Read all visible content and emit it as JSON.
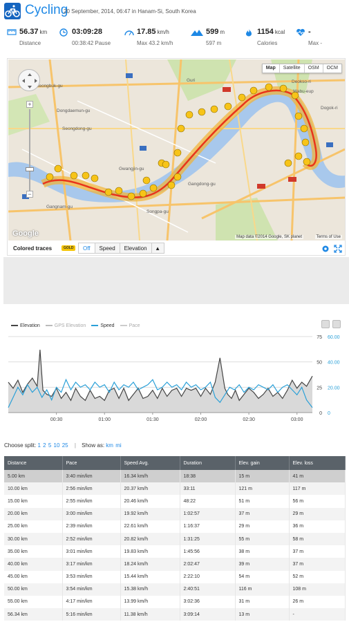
{
  "header": {
    "title": "Cycling",
    "subtitle": "20 September, 2014, 06:47 in Hanam-Si, South Korea",
    "icon": "bicycle-icon",
    "accent": "#1e88e5"
  },
  "stats": [
    {
      "icon": "distance-icon",
      "value": "56.37",
      "unit": "km",
      "sub": "Distance"
    },
    {
      "icon": "clock-icon",
      "value": "03:09:28",
      "unit": "",
      "sub": "00:38:42 Pause"
    },
    {
      "icon": "speedometer-icon",
      "value": "17.85",
      "unit": "km/h",
      "sub": "Max 43.2 km/h"
    },
    {
      "icon": "mountain-icon",
      "value": "599",
      "unit": "m",
      "sub": "597 m"
    },
    {
      "icon": "flame-icon",
      "value": "1154",
      "unit": "kcal",
      "sub": "Calories"
    },
    {
      "icon": "heart-rate-icon",
      "value": "-",
      "unit": "",
      "sub": "Max -"
    }
  ],
  "map": {
    "types": [
      "Map",
      "Satellite",
      "OSM",
      "OCM"
    ],
    "google": "Google",
    "attribution": "Map data ©2014 Google, SK planet",
    "terms": "Terms of Use",
    "labels": [
      "Seongbuk-gu",
      "Dongdaemun-gu",
      "Seongdong-gu",
      "Gwangjin-gu",
      "Gangdong-gu",
      "Songpa-gu",
      "Gangnam-gu",
      "Guri",
      "Deokso-ri",
      "Wabu-eup",
      "Dogok-ri"
    ],
    "markers": [
      "1",
      "2",
      "3",
      "4",
      "5",
      "6",
      "7",
      "8",
      "9",
      "10",
      "11",
      "12",
      "13",
      "14",
      "15",
      "16",
      "17",
      "18",
      "19",
      "20",
      "21",
      "22",
      "23",
      "24",
      "25",
      "26",
      "27",
      "28",
      "29",
      "30",
      "31",
      "32",
      "33",
      "34",
      "35",
      "36",
      "37",
      "38",
      "39",
      "40",
      "41",
      "42",
      "43",
      "44",
      "45",
      "46",
      "47",
      "48",
      "49",
      "50",
      "51",
      "52",
      "53",
      "54",
      "55",
      "56"
    ]
  },
  "map_controls": {
    "label": "Colored traces",
    "badge": "GOLD",
    "options": [
      "Off",
      "Speed",
      "Elevation"
    ],
    "arrow": "▲"
  },
  "chart_legend": [
    {
      "label": "Elevation",
      "color": "#444444"
    },
    {
      "label": "GPS Elevation",
      "color": "#bbbbbb"
    },
    {
      "label": "Speed",
      "color": "#2aa0d8"
    },
    {
      "label": "Pace",
      "color": "#cccccc"
    }
  ],
  "chart_data": {
    "type": "line",
    "x_ticks": [
      "00:30",
      "01:00",
      "01:30",
      "02:00",
      "02:30",
      "03:00"
    ],
    "y_left_ticks": [
      "75",
      "50",
      "25",
      "0"
    ],
    "y_right_ticks": [
      "60.00",
      "40.00",
      "20.00",
      "0"
    ],
    "x_range": [
      0,
      3.16
    ],
    "y_left_range": [
      0,
      75
    ],
    "y_right_range": [
      0,
      60
    ],
    "series": [
      {
        "name": "Elevation",
        "axis": "left",
        "color": "#444444",
        "x": [
          0,
          0.05,
          0.1,
          0.15,
          0.2,
          0.25,
          0.3,
          0.33,
          0.36,
          0.4,
          0.45,
          0.5,
          0.55,
          0.6,
          0.65,
          0.7,
          0.75,
          0.8,
          0.85,
          0.9,
          0.95,
          1.0,
          1.05,
          1.1,
          1.15,
          1.2,
          1.25,
          1.3,
          1.35,
          1.4,
          1.45,
          1.5,
          1.55,
          1.6,
          1.65,
          1.7,
          1.75,
          1.8,
          1.85,
          1.9,
          1.95,
          2.0,
          2.05,
          2.1,
          2.15,
          2.2,
          2.25,
          2.28,
          2.32,
          2.36,
          2.4,
          2.45,
          2.5,
          2.55,
          2.6,
          2.65,
          2.7,
          2.75,
          2.8,
          2.85,
          2.9,
          2.95,
          3.0,
          3.05,
          3.1,
          3.16
        ],
        "y": [
          30,
          24,
          32,
          20,
          28,
          34,
          26,
          62,
          22,
          18,
          16,
          24,
          14,
          20,
          12,
          24,
          16,
          12,
          22,
          14,
          16,
          12,
          22,
          24,
          14,
          24,
          12,
          18,
          24,
          14,
          16,
          22,
          14,
          24,
          16,
          22,
          24,
          16,
          24,
          22,
          24,
          16,
          24,
          18,
          30,
          54,
          24,
          18,
          14,
          22,
          12,
          18,
          24,
          20,
          14,
          18,
          24,
          16,
          20,
          14,
          22,
          32,
          24,
          30,
          26,
          36
        ]
      },
      {
        "name": "Speed",
        "axis": "right",
        "color": "#2aa0d8",
        "x": [
          0,
          0.05,
          0.1,
          0.15,
          0.2,
          0.25,
          0.3,
          0.35,
          0.4,
          0.45,
          0.5,
          0.55,
          0.6,
          0.65,
          0.7,
          0.75,
          0.8,
          0.85,
          0.9,
          0.95,
          1.0,
          1.05,
          1.1,
          1.15,
          1.2,
          1.25,
          1.3,
          1.35,
          1.4,
          1.45,
          1.5,
          1.55,
          1.6,
          1.65,
          1.7,
          1.75,
          1.8,
          1.85,
          1.9,
          1.95,
          2.0,
          2.05,
          2.1,
          2.15,
          2.2,
          2.25,
          2.3,
          2.35,
          2.4,
          2.45,
          2.5,
          2.55,
          2.6,
          2.65,
          2.7,
          2.75,
          2.8,
          2.85,
          2.9,
          2.95,
          3.0,
          3.05,
          3.1,
          3.16
        ],
        "y": [
          4,
          12,
          20,
          14,
          22,
          16,
          20,
          12,
          18,
          10,
          20,
          16,
          26,
          18,
          24,
          20,
          22,
          18,
          24,
          20,
          22,
          16,
          24,
          18,
          22,
          20,
          24,
          18,
          20,
          22,
          26,
          18,
          20,
          24,
          20,
          22,
          18,
          24,
          20,
          22,
          18,
          20,
          24,
          12,
          8,
          14,
          20,
          18,
          22,
          16,
          20,
          18,
          22,
          20,
          18,
          22,
          16,
          20,
          22,
          18,
          14,
          20,
          10,
          4
        ]
      }
    ]
  },
  "splits": {
    "label": "Choose split:",
    "options": [
      "1",
      "2",
      "5",
      "10",
      "25"
    ],
    "show_label": "Show as:",
    "units": [
      "km",
      "mi"
    ]
  },
  "table": {
    "headers": [
      "Distance",
      "Pace",
      "Speed Avg.",
      "Duration",
      "Elev. gain",
      "Elev. loss"
    ],
    "rows": [
      [
        "5.00 km",
        "3:40 min/km",
        "16.34 km/h",
        "18:38",
        "15 m",
        "41 m"
      ],
      [
        "10.00 km",
        "2:56 min/km",
        "20.37 km/h",
        "33:11",
        "121 m",
        "117 m"
      ],
      [
        "15.00 km",
        "2:55 min/km",
        "20.46 km/h",
        "48:22",
        "51 m",
        "56 m"
      ],
      [
        "20.00 km",
        "3:00 min/km",
        "19.92 km/h",
        "1:02:57",
        "37 m",
        "29 m"
      ],
      [
        "25.00 km",
        "2:39 min/km",
        "22.61 km/h",
        "1:16:37",
        "29 m",
        "36 m"
      ],
      [
        "30.00 km",
        "2:52 min/km",
        "20.82 km/h",
        "1:31:25",
        "55 m",
        "58 m"
      ],
      [
        "35.00 km",
        "3:01 min/km",
        "19.83 km/h",
        "1:45:56",
        "38 m",
        "37 m"
      ],
      [
        "40.00 km",
        "3:17 min/km",
        "18.24 km/h",
        "2:02:47",
        "39 m",
        "37 m"
      ],
      [
        "45.00 km",
        "3:53 min/km",
        "15.44 km/h",
        "2:22:10",
        "54 m",
        "52 m"
      ],
      [
        "50.00 km",
        "3:54 min/km",
        "15.38 km/h",
        "2:40:51",
        "116 m",
        "108 m"
      ],
      [
        "55.00 km",
        "4:17 min/km",
        "13.99 km/h",
        "3:02:36",
        "31 m",
        "26 m"
      ],
      [
        "56.34 km",
        "5:16 min/km",
        "11.38 km/h",
        "3:09:14",
        "13 m",
        "-"
      ]
    ]
  }
}
